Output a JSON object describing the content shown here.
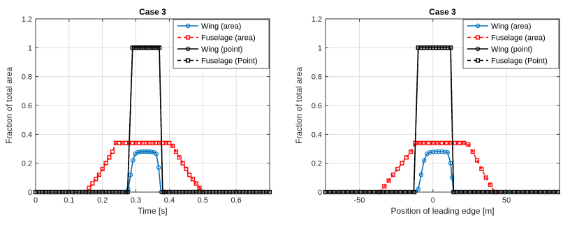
{
  "colors": {
    "wing_area": "#0072BD",
    "fuselage_area": "#FF0000",
    "wing_point": "#000000",
    "fuselage_point": "#000000",
    "grid": "#d9d9d9",
    "axes": "#262626"
  },
  "legend_labels": [
    "Wing (area)",
    "Fuselage (area)",
    "Wing (point)",
    "Fuselage (Point)"
  ],
  "chart_data": [
    {
      "type": "line",
      "title": "Case 3",
      "xlabel": "Time [s]",
      "ylabel": "Fraction of total area",
      "xlim": [
        0,
        0.7
      ],
      "ylim": [
        0,
        1.2
      ],
      "xticks": [
        0,
        0.1,
        0.2,
        0.3,
        0.4,
        0.5,
        0.6
      ],
      "xtick_labels": [
        "0",
        "0.1",
        "0.2",
        "0.3",
        "0.4",
        "0.5",
        "0.6"
      ],
      "yticks": [
        0,
        0.2,
        0.4,
        0.6,
        0.8,
        1,
        1.2
      ],
      "ytick_labels": [
        "0",
        "0.2",
        "0.4",
        "0.6",
        "0.8",
        "1",
        "1.2"
      ],
      "grid": true,
      "legend_position": "top-right",
      "series": [
        {
          "name": "Wing (area)",
          "x": [
            0.27,
            0.277,
            0.284,
            0.291,
            0.298,
            0.305,
            0.312,
            0.319,
            0.326,
            0.333,
            0.34,
            0.347,
            0.354,
            0.361,
            0.368,
            0.375
          ],
          "y": [
            0,
            0.02,
            0.12,
            0.22,
            0.265,
            0.275,
            0.278,
            0.28,
            0.28,
            0.28,
            0.28,
            0.278,
            0.275,
            0.265,
            0.17,
            0.0
          ]
        },
        {
          "name": "Fuselage (area)",
          "x": [
            0.15,
            0.16,
            0.17,
            0.18,
            0.19,
            0.2,
            0.21,
            0.22,
            0.23,
            0.24,
            0.25,
            0.26,
            0.27,
            0.28,
            0.29,
            0.3,
            0.31,
            0.32,
            0.33,
            0.34,
            0.35,
            0.36,
            0.37,
            0.38,
            0.39,
            0.4,
            0.41,
            0.42,
            0.43,
            0.44,
            0.45,
            0.46,
            0.47,
            0.48,
            0.49,
            0.5
          ],
          "y": [
            0,
            0.03,
            0.06,
            0.09,
            0.12,
            0.16,
            0.2,
            0.24,
            0.28,
            0.34,
            0.34,
            0.34,
            0.34,
            0.34,
            0.34,
            0.34,
            0.34,
            0.34,
            0.34,
            0.34,
            0.34,
            0.34,
            0.34,
            0.34,
            0.34,
            0.34,
            0.32,
            0.28,
            0.24,
            0.2,
            0.16,
            0.12,
            0.09,
            0.06,
            0.03,
            0.0
          ]
        },
        {
          "name": "Wing (point)",
          "x": [
            0.0,
            0.01,
            0.02,
            0.03,
            0.04,
            0.05,
            0.06,
            0.07,
            0.08,
            0.09,
            0.1,
            0.11,
            0.12,
            0.13,
            0.14,
            0.15,
            0.16,
            0.17,
            0.18,
            0.19,
            0.2,
            0.21,
            0.22,
            0.23,
            0.24,
            0.25,
            0.26,
            0.27,
            0.275,
            0.29,
            0.295,
            0.3,
            0.305,
            0.31,
            0.315,
            0.32,
            0.325,
            0.33,
            0.335,
            0.34,
            0.345,
            0.35,
            0.355,
            0.36,
            0.365,
            0.37,
            0.38,
            0.385,
            0.39,
            0.4,
            0.41,
            0.42,
            0.43,
            0.44,
            0.45,
            0.46,
            0.47,
            0.48,
            0.49,
            0.5,
            0.51,
            0.52,
            0.53,
            0.54,
            0.55,
            0.56,
            0.57,
            0.58,
            0.59,
            0.6,
            0.61,
            0.62,
            0.63,
            0.64,
            0.65,
            0.66,
            0.67,
            0.68,
            0.69,
            0.7
          ],
          "y": [
            0,
            0,
            0,
            0,
            0,
            0,
            0,
            0,
            0,
            0,
            0,
            0,
            0,
            0,
            0,
            0,
            0,
            0,
            0,
            0,
            0,
            0,
            0,
            0,
            0,
            0,
            0,
            0,
            0,
            1,
            1,
            1,
            1,
            1,
            1,
            1,
            1,
            1,
            1,
            1,
            1,
            1,
            1,
            1,
            1,
            1,
            0,
            0,
            0,
            0,
            0,
            0,
            0,
            0,
            0,
            0,
            0,
            0,
            0,
            0,
            0,
            0,
            0,
            0,
            0,
            0,
            0,
            0,
            0,
            0,
            0,
            0,
            0,
            0,
            0,
            0,
            0,
            0,
            0,
            0
          ]
        },
        {
          "name": "Fuselage (Point)",
          "x": [
            0.0,
            0.01,
            0.02,
            0.03,
            0.04,
            0.05,
            0.06,
            0.07,
            0.08,
            0.09,
            0.1,
            0.11,
            0.12,
            0.13,
            0.14,
            0.15,
            0.16,
            0.17,
            0.18,
            0.19,
            0.2,
            0.21,
            0.22,
            0.23,
            0.24,
            0.25,
            0.26,
            0.27,
            0.275,
            0.29,
            0.295,
            0.3,
            0.305,
            0.31,
            0.315,
            0.32,
            0.325,
            0.33,
            0.335,
            0.34,
            0.345,
            0.35,
            0.355,
            0.36,
            0.365,
            0.37,
            0.38,
            0.385,
            0.39,
            0.4,
            0.41,
            0.42,
            0.43,
            0.44,
            0.45,
            0.46,
            0.47,
            0.48,
            0.49,
            0.5,
            0.51,
            0.52,
            0.53,
            0.54,
            0.55,
            0.56,
            0.57,
            0.58,
            0.59,
            0.6,
            0.61,
            0.62,
            0.63,
            0.64,
            0.65,
            0.66,
            0.67,
            0.68,
            0.69,
            0.7
          ],
          "y": [
            0,
            0,
            0,
            0,
            0,
            0,
            0,
            0,
            0,
            0,
            0,
            0,
            0,
            0,
            0,
            0,
            0,
            0,
            0,
            0,
            0,
            0,
            0,
            0,
            0,
            0,
            0,
            0,
            0,
            1,
            1,
            1,
            1,
            1,
            1,
            1,
            1,
            1,
            1,
            1,
            1,
            1,
            1,
            1,
            1,
            1,
            0,
            0,
            0,
            0,
            0,
            0,
            0,
            0,
            0,
            0,
            0,
            0,
            0,
            0,
            0,
            0,
            0,
            0,
            0,
            0,
            0,
            0,
            0,
            0,
            0,
            0,
            0,
            0,
            0,
            0,
            0,
            0,
            0,
            0
          ]
        }
      ]
    },
    {
      "type": "line",
      "title": "Case 3",
      "xlabel": "Position of leading edge [m]",
      "ylabel": "Fraction of total area",
      "xlim": [
        -73,
        86
      ],
      "ylim": [
        0,
        1.2
      ],
      "xticks": [
        -50,
        0,
        50
      ],
      "xtick_labels": [
        "-50",
        "0",
        "50"
      ],
      "yticks": [
        0,
        0.2,
        0.4,
        0.6,
        0.8,
        1,
        1.2
      ],
      "ytick_labels": [
        "0",
        "0.2",
        "0.4",
        "0.6",
        "0.8",
        "1",
        "1.2"
      ],
      "grid": true,
      "legend_position": "top-right",
      "series": [
        {
          "name": "Wing (area)",
          "x": [
            -12,
            -10,
            -8,
            -6,
            -4,
            -2,
            0,
            2,
            4,
            6,
            8,
            10,
            12,
            13,
            14
          ],
          "y": [
            0,
            0.02,
            0.12,
            0.22,
            0.265,
            0.275,
            0.278,
            0.28,
            0.28,
            0.28,
            0.278,
            0.275,
            0.2,
            0.1,
            0.0
          ]
        },
        {
          "name": "Fuselage (area)",
          "x": [
            -36,
            -33,
            -30,
            -27,
            -24,
            -21,
            -18,
            -15,
            -12,
            -9,
            -6,
            -3,
            0,
            3,
            6,
            9,
            12,
            15,
            18,
            21,
            24,
            27,
            30,
            33,
            36,
            39,
            42
          ],
          "y": [
            0,
            0.04,
            0.08,
            0.12,
            0.16,
            0.2,
            0.24,
            0.28,
            0.34,
            0.34,
            0.34,
            0.34,
            0.34,
            0.34,
            0.34,
            0.34,
            0.34,
            0.34,
            0.34,
            0.34,
            0.33,
            0.28,
            0.22,
            0.16,
            0.1,
            0.05,
            0.0
          ]
        },
        {
          "name": "Wing (point)",
          "x": [
            -73,
            -70,
            -67,
            -64,
            -61,
            -58,
            -55,
            -52,
            -49,
            -46,
            -43,
            -40,
            -37,
            -34,
            -31,
            -28,
            -25,
            -22,
            -19,
            -16,
            -13,
            -10,
            -8,
            -6,
            -4,
            -2,
            0,
            2,
            4,
            6,
            8,
            10,
            12,
            14,
            16,
            19,
            22,
            25,
            28,
            31,
            34,
            37,
            40,
            43,
            46,
            49,
            52,
            55,
            58,
            61,
            64,
            67,
            70,
            73,
            76,
            79,
            82,
            85
          ],
          "y": [
            0,
            0,
            0,
            0,
            0,
            0,
            0,
            0,
            0,
            0,
            0,
            0,
            0,
            0,
            0,
            0,
            0,
            0,
            0,
            0,
            0,
            1,
            1,
            1,
            1,
            1,
            1,
            1,
            1,
            1,
            1,
            1,
            1,
            0,
            0,
            0,
            0,
            0,
            0,
            0,
            0,
            0,
            0,
            0,
            0,
            0,
            0,
            0,
            0,
            0,
            0,
            0,
            0,
            0,
            0,
            0,
            0,
            0
          ]
        },
        {
          "name": "Fuselage (Point)",
          "x": [
            -73,
            -70,
            -67,
            -64,
            -61,
            -58,
            -55,
            -52,
            -49,
            -46,
            -43,
            -40,
            -37,
            -34,
            -31,
            -28,
            -25,
            -22,
            -19,
            -16,
            -13,
            -10,
            -8,
            -6,
            -4,
            -2,
            0,
            2,
            4,
            6,
            8,
            10,
            12,
            14,
            16,
            19,
            22,
            25,
            28,
            31,
            34,
            37,
            40,
            43,
            46,
            49,
            52,
            55,
            58,
            61,
            64,
            67,
            70,
            73,
            76,
            79,
            82,
            85
          ],
          "y": [
            0,
            0,
            0,
            0,
            0,
            0,
            0,
            0,
            0,
            0,
            0,
            0,
            0,
            0,
            0,
            0,
            0,
            0,
            0,
            0,
            0,
            1,
            1,
            1,
            1,
            1,
            1,
            1,
            1,
            1,
            1,
            1,
            1,
            0,
            0,
            0,
            0,
            0,
            0,
            0,
            0,
            0,
            0,
            0,
            0,
            0,
            0,
            0,
            0,
            0,
            0,
            0,
            0,
            0,
            0,
            0,
            0,
            0
          ]
        }
      ]
    }
  ]
}
